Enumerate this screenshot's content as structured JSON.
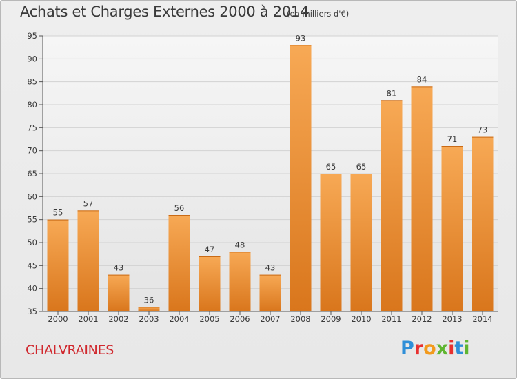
{
  "header": {
    "title": "Achats et Charges Externes 2000 à 2014",
    "unit_note": "(en milliers d'€)"
  },
  "footer": {
    "commune": "CHALVRAINES",
    "brand": "Proxiti",
    "brand_colors": [
      "#2f8fd8",
      "#e8302f",
      "#f29a1d",
      "#5fb531",
      "#e8302f",
      "#2f8fd8",
      "#5fb531"
    ]
  },
  "chart_data": {
    "type": "bar",
    "title": "Achats et Charges Externes 2000 à 2014",
    "subtitle": "(en milliers d'€)",
    "xlabel": "",
    "ylabel": "",
    "categories": [
      "2000",
      "2001",
      "2002",
      "2003",
      "2004",
      "2005",
      "2006",
      "2007",
      "2008",
      "2009",
      "2010",
      "2011",
      "2012",
      "2013",
      "2014"
    ],
    "values": [
      55,
      57,
      43,
      36,
      56,
      47,
      48,
      43,
      93,
      65,
      65,
      81,
      84,
      71,
      73
    ],
    "ylim": [
      35,
      95
    ],
    "yticks": [
      35,
      40,
      45,
      50,
      55,
      60,
      65,
      70,
      75,
      80,
      85,
      90,
      95
    ],
    "grid": true,
    "bar_color_top": "#f7a955",
    "bar_color_bottom": "#d9761c",
    "legend": "none"
  }
}
